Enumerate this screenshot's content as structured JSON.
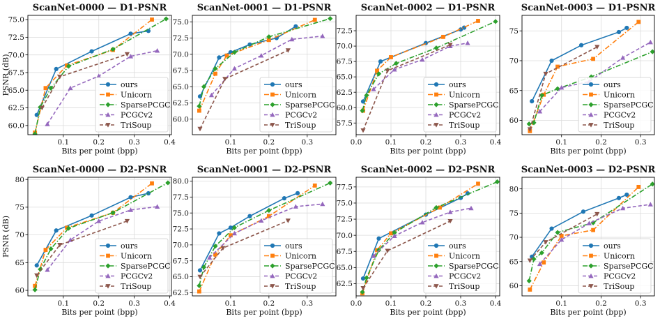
{
  "figure": {
    "series_names": [
      "ours",
      "Unicorn",
      "SparsePCGC",
      "PCGCv2",
      "TriSoup"
    ],
    "series_colors": [
      "#1f77b4",
      "#ff7f0e",
      "#2ca02c",
      "#9467bd",
      "#8c564b"
    ],
    "series_markers": [
      "circle",
      "square",
      "diamond",
      "triangle-up",
      "triangle-down"
    ],
    "series_dashes": [
      "solid",
      "dashdot",
      "dashdot",
      "dashed",
      "dashed"
    ]
  },
  "chart_data": [
    {
      "type": "line",
      "title": "ScanNet-0000 — D1-PSNR",
      "xlabel": "Bits per point (bpp)",
      "ylabel": "PSNR (dB)",
      "xlim": [
        0.0,
        0.405
      ],
      "ylim": [
        58.7,
        75.6
      ],
      "xticks": [
        0.1,
        0.2,
        0.3,
        0.4
      ],
      "xtick_labels": [
        "0.1",
        "0.2",
        "0.3",
        "0.4"
      ],
      "yticks": [
        60,
        62.5,
        65,
        67.5,
        70,
        72.5,
        75
      ],
      "ytick_labels": [
        "60.0",
        "62.5",
        "65.0",
        "67.5",
        "70.0",
        "72.5",
        "75.0"
      ],
      "grid": true,
      "legend": "bottom-right",
      "series": [
        {
          "name": "ours",
          "x": [
            0.025,
            0.08,
            0.18,
            0.29,
            0.34
          ],
          "y": [
            61.5,
            68.0,
            70.5,
            73.0,
            73.4
          ]
        },
        {
          "name": "Unicorn",
          "x": [
            0.02,
            0.05,
            0.11,
            0.24,
            0.35
          ],
          "y": [
            59.0,
            65.3,
            68.5,
            70.7,
            75.0
          ]
        },
        {
          "name": "SparsePCGC",
          "x": [
            0.02,
            0.035,
            0.065,
            0.115,
            0.24,
            0.39
          ],
          "y": [
            58.8,
            62.6,
            65.3,
            68.4,
            70.8,
            75.1
          ]
        },
        {
          "name": "PCGCv2",
          "x": [
            0.055,
            0.12,
            0.2,
            0.29,
            0.365
          ],
          "y": [
            60.2,
            65.3,
            67.0,
            69.8,
            70.6
          ]
        },
        {
          "name": "TriSoup",
          "x": [
            0.04,
            0.09,
            0.28
          ],
          "y": [
            62.5,
            66.9,
            70.1
          ]
        }
      ]
    },
    {
      "type": "line",
      "title": "ScanNet-0001 — D1-PSNR",
      "xlabel": "Bits per point (bpp)",
      "ylabel": "",
      "xlim": [
        0.0,
        0.375
      ],
      "ylim": [
        57.6,
        76.0
      ],
      "xticks": [
        0.1,
        0.2,
        0.3
      ],
      "xtick_labels": [
        "0.1",
        "0.2",
        "0.3"
      ],
      "yticks": [
        60,
        62.5,
        65,
        67.5,
        70,
        72.5,
        75
      ],
      "ytick_labels": [
        "60.0",
        "62.5",
        "65.0",
        "67.5",
        "70.0",
        "72.5",
        "75.0"
      ],
      "grid": true,
      "legend": "bottom-right",
      "series": [
        {
          "name": "ours",
          "x": [
            0.02,
            0.07,
            0.1,
            0.15,
            0.22,
            0.27
          ],
          "y": [
            63.5,
            69.5,
            70.3,
            71.5,
            72.5,
            74.3
          ]
        },
        {
          "name": "Unicorn",
          "x": [
            0.018,
            0.06,
            0.09,
            0.2,
            0.32
          ],
          "y": [
            61.3,
            67.0,
            69.8,
            72.2,
            75.3
          ]
        },
        {
          "name": "SparsePCGC",
          "x": [
            0.018,
            0.03,
            0.06,
            0.11,
            0.2,
            0.36
          ],
          "y": [
            62.0,
            65.0,
            67.8,
            70.3,
            72.7,
            75.5
          ]
        },
        {
          "name": "PCGCv2",
          "x": [
            0.05,
            0.11,
            0.18,
            0.26,
            0.34
          ],
          "y": [
            63.7,
            67.8,
            69.8,
            72.3,
            72.8
          ]
        },
        {
          "name": "TriSoup",
          "x": [
            0.02,
            0.085,
            0.25
          ],
          "y": [
            58.5,
            66.2,
            70.6
          ]
        }
      ]
    },
    {
      "type": "line",
      "title": "ScanNet-0002 — D1-PSNR",
      "xlabel": "Bits per point (bpp)",
      "ylabel": "",
      "xlim": [
        0.0,
        0.412
      ],
      "ylim": [
        55.6,
        75.0
      ],
      "xticks": [
        0.0,
        0.1,
        0.2,
        0.3,
        0.4
      ],
      "xtick_labels": [
        "0.0",
        "0.1",
        "0.2",
        "0.3",
        "0.4"
      ],
      "yticks": [
        57.5,
        60,
        62.5,
        65,
        67.5,
        70,
        72.5
      ],
      "ytick_labels": [
        "57.5",
        "60.0",
        "62.5",
        "65.0",
        "67.5",
        "70.0",
        "72.5"
      ],
      "grid": true,
      "legend": "bottom-right",
      "series": [
        {
          "name": "ours",
          "x": [
            0.02,
            0.07,
            0.2,
            0.3,
            0.31
          ],
          "y": [
            61.0,
            67.5,
            70.5,
            72.7,
            73.0
          ]
        },
        {
          "name": "Unicorn",
          "x": [
            0.02,
            0.06,
            0.1,
            0.25,
            0.35
          ],
          "y": [
            59.5,
            66.0,
            68.2,
            71.5,
            74.1
          ]
        },
        {
          "name": "SparsePCGC",
          "x": [
            0.018,
            0.03,
            0.065,
            0.115,
            0.23,
            0.4
          ],
          "y": [
            59.5,
            62.0,
            65.5,
            67.2,
            69.7,
            74.0
          ]
        },
        {
          "name": "PCGCv2",
          "x": [
            0.05,
            0.11,
            0.19,
            0.27,
            0.32
          ],
          "y": [
            63.0,
            66.2,
            67.8,
            70.0,
            70.5
          ]
        },
        {
          "name": "TriSoup",
          "x": [
            0.02,
            0.09,
            0.27
          ],
          "y": [
            56.3,
            66.0,
            70.2
          ]
        }
      ]
    },
    {
      "type": "line",
      "title": "ScanNet-0003 — D1-PSNR",
      "xlabel": "Bits per point (bpp)",
      "ylabel": "",
      "xlim": [
        0.0,
        0.335
      ],
      "ylim": [
        57.6,
        77.6
      ],
      "xticks": [
        0.1,
        0.2,
        0.3
      ],
      "xtick_labels": [
        "0.1",
        "0.2",
        "0.3"
      ],
      "yticks": [
        60,
        65,
        70,
        75
      ],
      "ytick_labels": [
        "60",
        "65",
        "70",
        "75"
      ],
      "grid": true,
      "legend": "bottom-right",
      "series": [
        {
          "name": "ours",
          "x": [
            0.025,
            0.075,
            0.15,
            0.245,
            0.265
          ],
          "y": [
            63.2,
            70.0,
            72.6,
            74.8,
            75.5
          ]
        },
        {
          "name": "Unicorn",
          "x": [
            0.02,
            0.055,
            0.09,
            0.18,
            0.295
          ],
          "y": [
            58.2,
            64.3,
            69.0,
            70.3,
            76.5
          ]
        },
        {
          "name": "SparsePCGC",
          "x": [
            0.018,
            0.03,
            0.05,
            0.09,
            0.175,
            0.33
          ],
          "y": [
            59.4,
            59.6,
            64.2,
            65.3,
            67.3,
            71.5
          ]
        },
        {
          "name": "PCGCv2",
          "x": [
            0.045,
            0.1,
            0.17,
            0.255,
            0.325
          ],
          "y": [
            61.5,
            65.5,
            66.5,
            70.5,
            73.1
          ]
        },
        {
          "name": "TriSoup",
          "x": [
            0.02,
            0.06,
            0.19
          ],
          "y": [
            58.5,
            67.8,
            72.3
          ]
        }
      ]
    },
    {
      "type": "line",
      "title": "ScanNet-0000 — D2-PSNR",
      "xlabel": "Bits per point (bpp)",
      "ylabel": "PSNR (dB)",
      "xlim": [
        0.0,
        0.405
      ],
      "ylim": [
        59.0,
        80.4
      ],
      "xticks": [
        0.1,
        0.2,
        0.3,
        0.4
      ],
      "xtick_labels": [
        "0.1",
        "0.2",
        "0.3",
        "0.4"
      ],
      "yticks": [
        60,
        65,
        70,
        75,
        80
      ],
      "ytick_labels": [
        "60",
        "65",
        "70",
        "75",
        "80"
      ],
      "grid": true,
      "legend": "bottom-right",
      "series": [
        {
          "name": "ours",
          "x": [
            0.025,
            0.08,
            0.18,
            0.29,
            0.34
          ],
          "y": [
            64.5,
            70.8,
            73.5,
            76.8,
            77.5
          ]
        },
        {
          "name": "Unicorn",
          "x": [
            0.02,
            0.05,
            0.11,
            0.24,
            0.35
          ],
          "y": [
            60.8,
            67.3,
            71.3,
            74.0,
            79.3
          ]
        },
        {
          "name": "SparsePCGC",
          "x": [
            0.02,
            0.035,
            0.065,
            0.115,
            0.24,
            0.395
          ],
          "y": [
            60.1,
            63.8,
            67.5,
            71.2,
            74.0,
            79.4
          ]
        },
        {
          "name": "PCGCv2",
          "x": [
            0.055,
            0.12,
            0.2,
            0.29,
            0.365
          ],
          "y": [
            63.7,
            69.1,
            72.5,
            74.5,
            75.1
          ]
        },
        {
          "name": "TriSoup",
          "x": [
            0.025,
            0.09,
            0.28
          ],
          "y": [
            62.7,
            68.2,
            72.5
          ]
        }
      ]
    },
    {
      "type": "line",
      "title": "ScanNet-0001 — D2-PSNR",
      "xlabel": "Bits per point (bpp)",
      "ylabel": "",
      "xlim": [
        0.0,
        0.375
      ],
      "ylim": [
        62.0,
        80.6
      ],
      "xticks": [
        0.1,
        0.2,
        0.3
      ],
      "xtick_labels": [
        "0.1",
        "0.2",
        "0.3"
      ],
      "yticks": [
        62.5,
        65,
        67.5,
        70,
        72.5,
        75,
        77.5,
        80
      ],
      "ytick_labels": [
        "62.5",
        "65.0",
        "67.5",
        "70.0",
        "72.5",
        "75.0",
        "77.5",
        "80.0"
      ],
      "grid": true,
      "legend": "bottom-right",
      "series": [
        {
          "name": "ours",
          "x": [
            0.02,
            0.07,
            0.1,
            0.15,
            0.24,
            0.275
          ],
          "y": [
            66.0,
            71.8,
            72.7,
            74.5,
            77.3,
            78.1
          ]
        },
        {
          "name": "Unicorn",
          "x": [
            0.018,
            0.06,
            0.1,
            0.2,
            0.32
          ],
          "y": [
            62.7,
            68.5,
            71.5,
            74.5,
            79.3
          ]
        },
        {
          "name": "SparsePCGC",
          "x": [
            0.018,
            0.03,
            0.06,
            0.11,
            0.2,
            0.36
          ],
          "y": [
            63.6,
            66.5,
            69.8,
            72.7,
            75.4,
            79.7
          ]
        },
        {
          "name": "PCGCv2",
          "x": [
            0.045,
            0.11,
            0.18,
            0.27,
            0.34
          ],
          "y": [
            68.0,
            71.8,
            73.8,
            76.0,
            76.4
          ]
        },
        {
          "name": "TriSoup",
          "x": [
            0.02,
            0.08,
            0.25
          ],
          "y": [
            65.0,
            69.5,
            73.8
          ]
        }
      ]
    },
    {
      "type": "line",
      "title": "ScanNet-0002 — D2-PSNR",
      "xlabel": "Bits per point (bpp)",
      "ylabel": "",
      "xlim": [
        0.0,
        0.412
      ],
      "ylim": [
        60.6,
        79.0
      ],
      "xticks": [
        0.0,
        0.1,
        0.2,
        0.3,
        0.4
      ],
      "xtick_labels": [
        "0.0",
        "0.1",
        "0.2",
        "0.3",
        "0.4"
      ],
      "yticks": [
        62.5,
        65,
        67.5,
        70,
        72.5,
        75,
        77.5
      ],
      "ytick_labels": [
        "62.5",
        "65.0",
        "67.5",
        "70.0",
        "72.5",
        "75.0",
        "77.5"
      ],
      "grid": true,
      "legend": "bottom-right",
      "series": [
        {
          "name": "ours",
          "x": [
            0.02,
            0.065,
            0.2,
            0.3,
            0.32
          ],
          "y": [
            63.3,
            69.5,
            73.2,
            75.8,
            76.5
          ]
        },
        {
          "name": "Unicorn",
          "x": [
            0.018,
            0.06,
            0.1,
            0.24,
            0.35
          ],
          "y": [
            61.0,
            67.7,
            70.3,
            74.3,
            78.0
          ]
        },
        {
          "name": "SparsePCGC",
          "x": [
            0.018,
            0.03,
            0.065,
            0.11,
            0.23,
            0.405
          ],
          "y": [
            61.2,
            63.4,
            67.7,
            70.4,
            74.3,
            78.3
          ]
        },
        {
          "name": "PCGCv2",
          "x": [
            0.05,
            0.11,
            0.19,
            0.27,
            0.33
          ],
          "y": [
            66.8,
            69.9,
            72.0,
            73.6,
            74.2
          ]
        },
        {
          "name": "TriSoup",
          "x": [
            0.02,
            0.09,
            0.27
          ],
          "y": [
            61.8,
            67.6,
            72.2
          ]
        }
      ]
    },
    {
      "type": "line",
      "title": "ScanNet-0003 — D2-PSNR",
      "xlabel": "Bits per point (bpp)",
      "ylabel": "",
      "xlim": [
        0.0,
        0.335
      ],
      "ylim": [
        57.9,
        82.4
      ],
      "xticks": [
        0.1,
        0.2,
        0.3
      ],
      "xtick_labels": [
        "0.1",
        "0.2",
        "0.3"
      ],
      "yticks": [
        60,
        65,
        70,
        75,
        80
      ],
      "ytick_labels": [
        "60",
        "65",
        "70",
        "75",
        "80"
      ],
      "grid": true,
      "legend": "bottom-right",
      "series": [
        {
          "name": "ours",
          "x": [
            0.025,
            0.075,
            0.155,
            0.245,
            0.265
          ],
          "y": [
            66.0,
            71.8,
            75.3,
            78.1,
            78.8
          ]
        },
        {
          "name": "Unicorn",
          "x": [
            0.02,
            0.055,
            0.1,
            0.18,
            0.295
          ],
          "y": [
            59.2,
            64.8,
            70.3,
            71.5,
            80.4
          ]
        },
        {
          "name": "SparsePCGC",
          "x": [
            0.018,
            0.03,
            0.05,
            0.09,
            0.18,
            0.33
          ],
          "y": [
            61.0,
            65.5,
            66.8,
            71.0,
            73.0,
            81.0
          ]
        },
        {
          "name": "PCGCv2",
          "x": [
            0.045,
            0.1,
            0.17,
            0.255,
            0.325
          ],
          "y": [
            64.5,
            69.5,
            72.9,
            76.0,
            76.8
          ]
        },
        {
          "name": "TriSoup",
          "x": [
            0.02,
            0.06,
            0.19
          ],
          "y": [
            65.2,
            69.0,
            74.8
          ]
        }
      ]
    }
  ]
}
